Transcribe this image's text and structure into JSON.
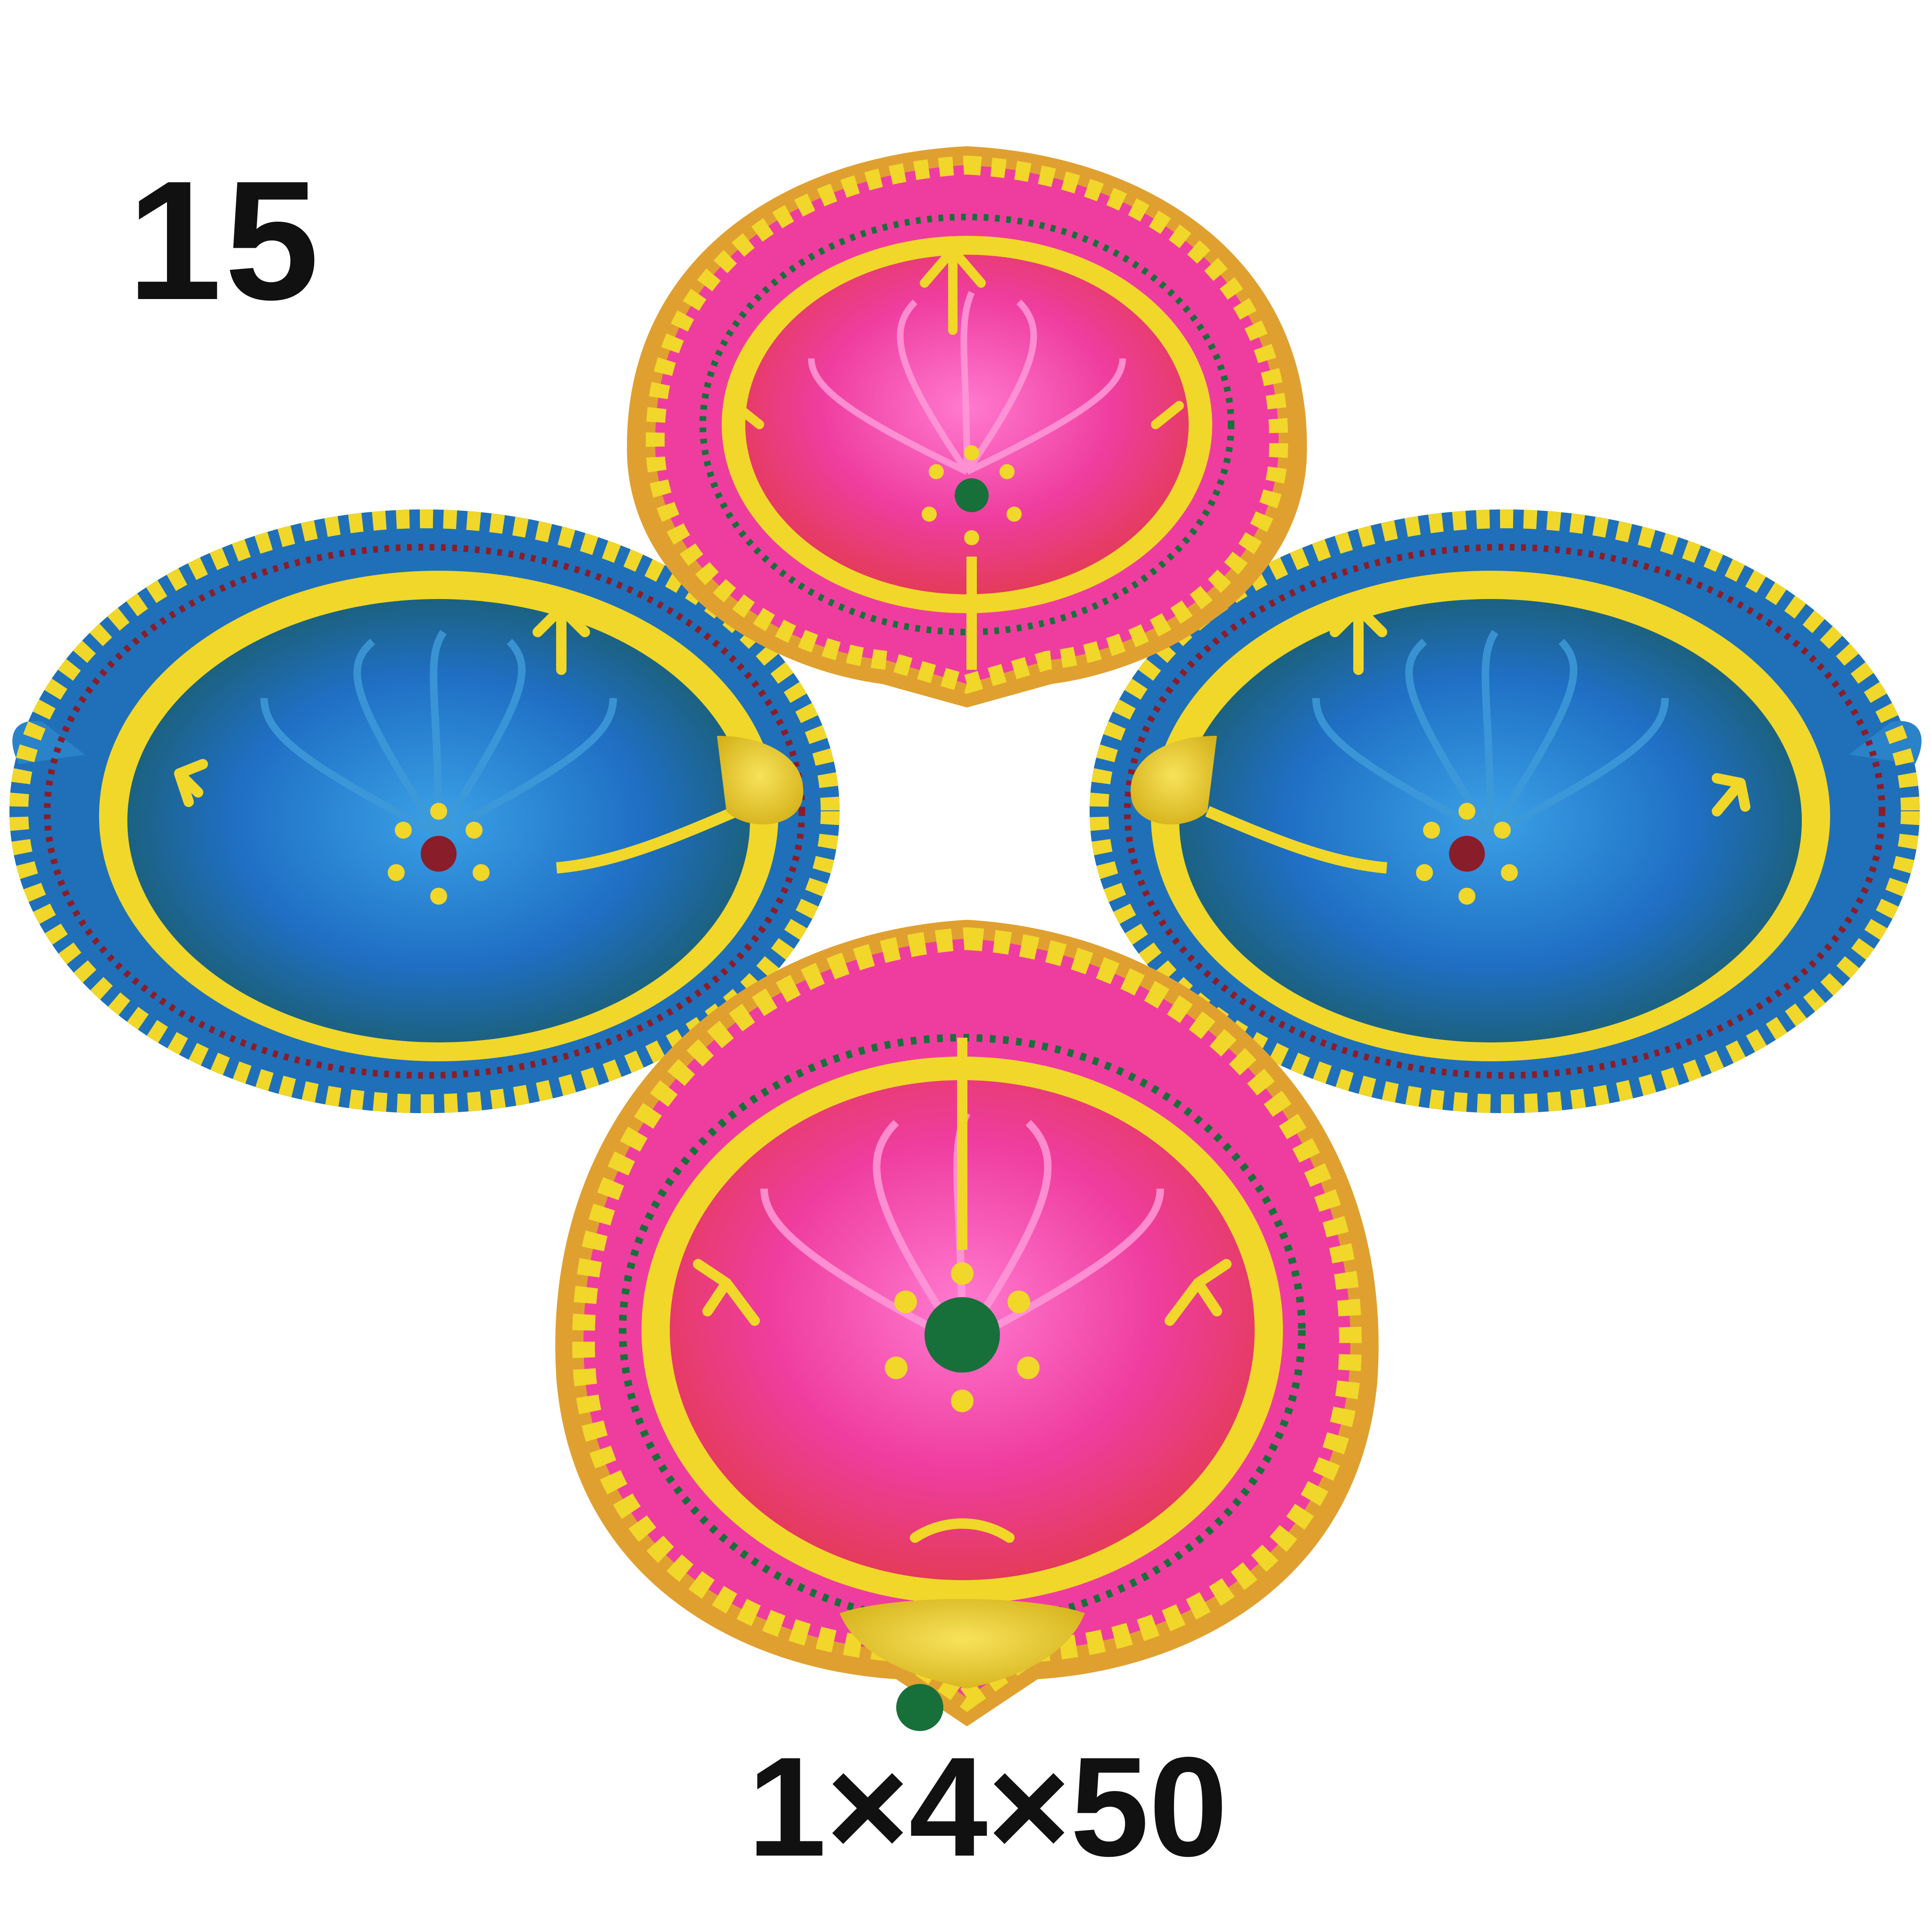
{
  "image": {
    "subject": "four-decorated-clay-diyas",
    "item_number": "15",
    "pack_label": "1×4×50"
  },
  "colors": {
    "background": "#ffffff",
    "text": "#111111",
    "gold": "#f0d72a",
    "gold_dark": "#c9a512",
    "pink": "#ee3aa0",
    "red": "#e23a5a",
    "blue": "#1f76c9",
    "teal": "#1d6a6f",
    "green": "#17703a",
    "maroon": "#8a1d2a"
  },
  "diyas": [
    {
      "name": "diya-top-pink",
      "bowl_color": "pink"
    },
    {
      "name": "diya-left-blue",
      "bowl_color": "blue"
    },
    {
      "name": "diya-right-blue",
      "bowl_color": "blue"
    },
    {
      "name": "diya-bottom-pink",
      "bowl_color": "pink"
    }
  ]
}
